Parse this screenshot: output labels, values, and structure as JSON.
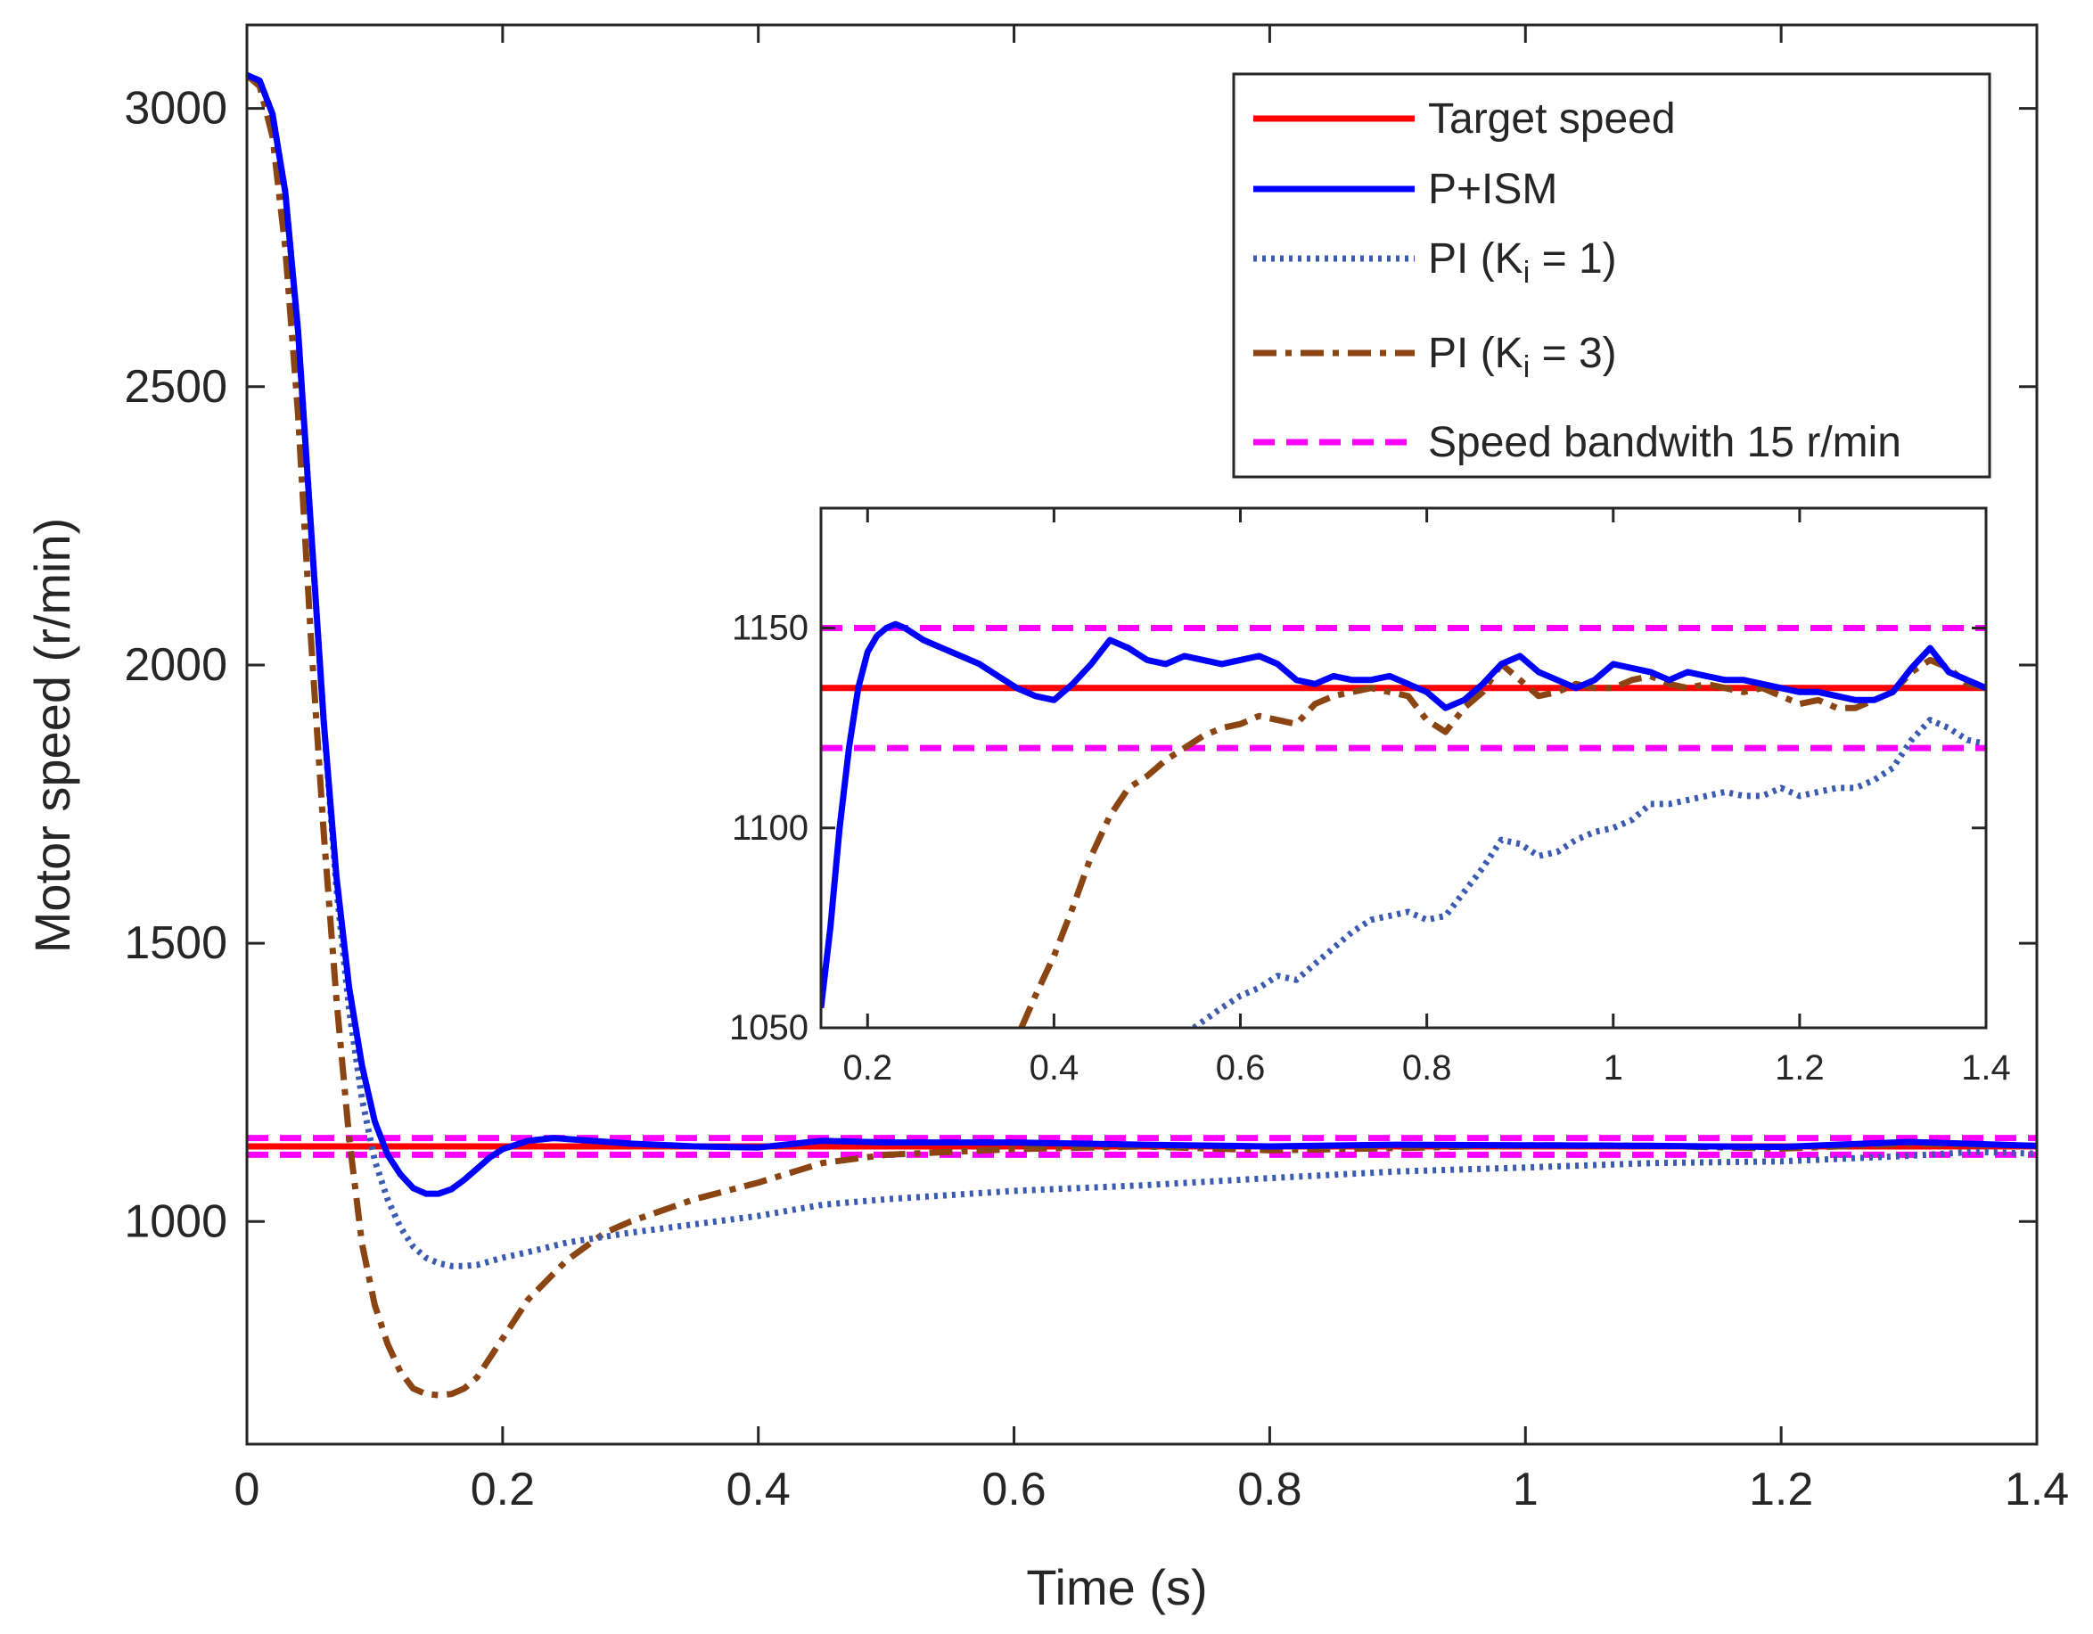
{
  "chart_data": [
    {
      "type": "line",
      "role": "main",
      "xlabel": "Time (s)",
      "ylabel": "Motor speed (r/min)",
      "xlim": [
        0,
        1.4
      ],
      "ylim": [
        600,
        3150
      ],
      "xticks": [
        0,
        0.2,
        0.4,
        0.6,
        0.8,
        1,
        1.2,
        1.4
      ],
      "xtick_labels": [
        "0",
        "0.2",
        "0.4",
        "0.6",
        "0.8",
        "1",
        "1.2",
        "1.4"
      ],
      "yticks": [
        1000,
        1500,
        2000,
        2500,
        3000
      ],
      "ytick_labels": [
        "1000",
        "1500",
        "2000",
        "2500",
        "3000"
      ],
      "grid": false,
      "legend_position": "top-right",
      "legend": [
        {
          "key": "target",
          "label": "Target speed"
        },
        {
          "key": "pism",
          "label": "P+ISM"
        },
        {
          "key": "pi1",
          "label": "PI (K",
          "sub": "i",
          "suffix": " = 1)"
        },
        {
          "key": "pi3",
          "label": "PI (K",
          "sub": "i",
          "suffix": " = 3)"
        },
        {
          "key": "band",
          "label": "Speed bandwith 15 r/min"
        }
      ],
      "series": [
        {
          "name": "Target speed",
          "key": "target",
          "color": "#ff0000",
          "style": "solid",
          "x": [
            0,
            1.4
          ],
          "y": [
            1135,
            1135
          ]
        },
        {
          "name": "Speed bandwith upper",
          "key": "band",
          "color": "#ff00ff",
          "style": "dashed",
          "x": [
            0,
            1.4
          ],
          "y": [
            1150,
            1150
          ]
        },
        {
          "name": "Speed bandwith lower",
          "key": "band",
          "color": "#ff00ff",
          "style": "dashed",
          "x": [
            0,
            1.4
          ],
          "y": [
            1120,
            1120
          ]
        },
        {
          "name": "PI (Ki = 3)",
          "key": "pi3",
          "color": "#8b4513",
          "style": "dashdot",
          "x": [
            0,
            0.01,
            0.02,
            0.03,
            0.04,
            0.05,
            0.06,
            0.07,
            0.08,
            0.09,
            0.1,
            0.11,
            0.12,
            0.13,
            0.14,
            0.15,
            0.16,
            0.17,
            0.18,
            0.2,
            0.22,
            0.25,
            0.28,
            0.3,
            0.35,
            0.4,
            0.45,
            0.5,
            0.55,
            0.6,
            0.7,
            0.8,
            0.9,
            1.0,
            1.1,
            1.2,
            1.3,
            1.4
          ],
          "y": [
            3060,
            3040,
            2950,
            2750,
            2450,
            2050,
            1700,
            1400,
            1150,
            960,
            850,
            780,
            730,
            700,
            690,
            688,
            690,
            700,
            720,
            790,
            860,
            930,
            980,
            1000,
            1040,
            1070,
            1105,
            1120,
            1125,
            1130,
            1135,
            1128,
            1132,
            1137,
            1136,
            1131,
            1140,
            1136
          ]
        },
        {
          "name": "PI (Ki = 1)",
          "key": "pi1",
          "color": "#3b5ab2",
          "style": "dotted",
          "x": [
            0,
            0.01,
            0.02,
            0.03,
            0.04,
            0.05,
            0.06,
            0.07,
            0.08,
            0.09,
            0.1,
            0.11,
            0.12,
            0.13,
            0.14,
            0.15,
            0.16,
            0.17,
            0.18,
            0.2,
            0.22,
            0.25,
            0.3,
            0.35,
            0.4,
            0.45,
            0.5,
            0.6,
            0.7,
            0.8,
            0.9,
            1.0,
            1.1,
            1.2,
            1.3,
            1.35,
            1.4
          ],
          "y": [
            3060,
            3050,
            2990,
            2850,
            2600,
            2250,
            1900,
            1600,
            1380,
            1220,
            1110,
            1040,
            990,
            955,
            935,
            925,
            920,
            920,
            922,
            935,
            945,
            962,
            980,
            995,
            1010,
            1030,
            1040,
            1055,
            1065,
            1078,
            1090,
            1097,
            1105,
            1108,
            1118,
            1125,
            1122
          ]
        },
        {
          "name": "P+ISM",
          "key": "pism",
          "color": "#0000ff",
          "style": "solid",
          "x": [
            0,
            0.01,
            0.02,
            0.03,
            0.04,
            0.05,
            0.06,
            0.07,
            0.08,
            0.09,
            0.1,
            0.11,
            0.12,
            0.13,
            0.14,
            0.15,
            0.16,
            0.17,
            0.18,
            0.19,
            0.2,
            0.22,
            0.24,
            0.27,
            0.3,
            0.35,
            0.4,
            0.45,
            0.5,
            0.6,
            0.7,
            0.8,
            0.9,
            1.0,
            1.1,
            1.2,
            1.3,
            1.4
          ],
          "y": [
            3060,
            3050,
            2990,
            2850,
            2600,
            2250,
            1900,
            1620,
            1420,
            1280,
            1180,
            1120,
            1085,
            1060,
            1050,
            1050,
            1058,
            1075,
            1095,
            1115,
            1130,
            1145,
            1150,
            1145,
            1140,
            1135,
            1133,
            1145,
            1142,
            1142,
            1138,
            1135,
            1138,
            1137,
            1136,
            1134,
            1143,
            1136
          ]
        }
      ]
    },
    {
      "type": "line",
      "role": "inset",
      "xlim": [
        0.15,
        1.4
      ],
      "ylim": [
        1050,
        1180
      ],
      "xticks": [
        0.2,
        0.4,
        0.6,
        0.8,
        1,
        1.2,
        1.4
      ],
      "xtick_labels": [
        "0.2",
        "0.4",
        "0.6",
        "0.8",
        "1",
        "1.2",
        "1.4"
      ],
      "yticks": [
        1050,
        1100,
        1150
      ],
      "ytick_labels": [
        "1050",
        "1100",
        "1150"
      ],
      "grid": false,
      "series": [
        {
          "name": "Target speed",
          "key": "target",
          "color": "#ff0000",
          "style": "solid",
          "x": [
            0.15,
            1.4
          ],
          "y": [
            1135,
            1135
          ]
        },
        {
          "name": "Speed bandwith upper",
          "key": "band",
          "color": "#ff00ff",
          "style": "dashed",
          "x": [
            0.15,
            1.4
          ],
          "y": [
            1150,
            1150
          ]
        },
        {
          "name": "Speed bandwith lower",
          "key": "band",
          "color": "#ff00ff",
          "style": "dashed",
          "x": [
            0.15,
            1.4
          ],
          "y": [
            1120,
            1120
          ]
        },
        {
          "name": "PI (Ki = 1)",
          "key": "pi1",
          "color": "#3b5ab2",
          "style": "dotted",
          "x": [
            0.55,
            0.58,
            0.6,
            0.62,
            0.64,
            0.66,
            0.68,
            0.7,
            0.72,
            0.74,
            0.76,
            0.78,
            0.8,
            0.82,
            0.84,
            0.86,
            0.88,
            0.9,
            0.92,
            0.94,
            0.96,
            0.98,
            1.0,
            1.02,
            1.04,
            1.06,
            1.08,
            1.1,
            1.12,
            1.14,
            1.16,
            1.18,
            1.2,
            1.22,
            1.24,
            1.26,
            1.28,
            1.3,
            1.32,
            1.34,
            1.36,
            1.38,
            1.4
          ],
          "y": [
            1050,
            1055,
            1058,
            1060,
            1063,
            1062,
            1066,
            1070,
            1074,
            1077,
            1078,
            1079,
            1077,
            1078,
            1084,
            1090,
            1097,
            1096,
            1093,
            1094,
            1097,
            1099,
            1100,
            1102,
            1106,
            1106,
            1107,
            1108,
            1109,
            1108,
            1108,
            1110,
            1108,
            1109,
            1110,
            1110,
            1112,
            1115,
            1122,
            1127,
            1125,
            1122,
            1121
          ]
        },
        {
          "name": "PI (Ki = 3)",
          "key": "pi3",
          "color": "#8b4513",
          "style": "dashdot",
          "x": [
            0.365,
            0.38,
            0.4,
            0.42,
            0.44,
            0.46,
            0.48,
            0.5,
            0.52,
            0.54,
            0.56,
            0.58,
            0.6,
            0.62,
            0.64,
            0.66,
            0.68,
            0.7,
            0.72,
            0.74,
            0.76,
            0.78,
            0.8,
            0.82,
            0.84,
            0.86,
            0.88,
            0.9,
            0.92,
            0.94,
            0.96,
            0.98,
            1.0,
            1.02,
            1.04,
            1.06,
            1.08,
            1.1,
            1.12,
            1.14,
            1.16,
            1.18,
            1.2,
            1.22,
            1.24,
            1.26,
            1.28,
            1.3,
            1.32,
            1.34,
            1.36,
            1.38,
            1.4
          ],
          "y": [
            1050,
            1058,
            1068,
            1080,
            1093,
            1103,
            1110,
            1113,
            1117,
            1120,
            1123,
            1125,
            1126,
            1128,
            1127,
            1126,
            1131,
            1133,
            1134,
            1135,
            1134,
            1133,
            1127,
            1124,
            1130,
            1134,
            1141,
            1137,
            1133,
            1134,
            1136,
            1135,
            1135,
            1137,
            1138,
            1136,
            1135,
            1136,
            1135,
            1134,
            1135,
            1133,
            1131,
            1132,
            1130,
            1130,
            1132,
            1134,
            1139,
            1142,
            1140,
            1136,
            1135
          ]
        },
        {
          "name": "P+ISM",
          "key": "pism",
          "color": "#0000ff",
          "style": "solid",
          "x": [
            0.15,
            0.16,
            0.17,
            0.18,
            0.19,
            0.2,
            0.21,
            0.22,
            0.23,
            0.24,
            0.26,
            0.28,
            0.3,
            0.32,
            0.34,
            0.36,
            0.38,
            0.4,
            0.42,
            0.44,
            0.46,
            0.48,
            0.5,
            0.52,
            0.54,
            0.56,
            0.58,
            0.6,
            0.62,
            0.64,
            0.66,
            0.68,
            0.7,
            0.72,
            0.74,
            0.76,
            0.78,
            0.8,
            0.82,
            0.84,
            0.86,
            0.88,
            0.9,
            0.92,
            0.94,
            0.96,
            0.98,
            1.0,
            1.02,
            1.04,
            1.06,
            1.08,
            1.1,
            1.12,
            1.14,
            1.16,
            1.18,
            1.2,
            1.22,
            1.24,
            1.26,
            1.28,
            1.3,
            1.32,
            1.34,
            1.36,
            1.38,
            1.4
          ],
          "y": [
            1055,
            1075,
            1100,
            1120,
            1135,
            1144,
            1148,
            1150,
            1151,
            1150,
            1147,
            1145,
            1143,
            1141,
            1138,
            1135,
            1133,
            1132,
            1136,
            1141,
            1147,
            1145,
            1142,
            1141,
            1143,
            1142,
            1141,
            1142,
            1143,
            1141,
            1137,
            1136,
            1138,
            1137,
            1137,
            1138,
            1136,
            1134,
            1130,
            1132,
            1136,
            1141,
            1143,
            1139,
            1137,
            1135,
            1137,
            1141,
            1140,
            1139,
            1137,
            1139,
            1138,
            1137,
            1137,
            1136,
            1135,
            1134,
            1134,
            1133,
            1132,
            1132,
            1134,
            1140,
            1145,
            1139,
            1137,
            1135
          ]
        }
      ]
    }
  ]
}
